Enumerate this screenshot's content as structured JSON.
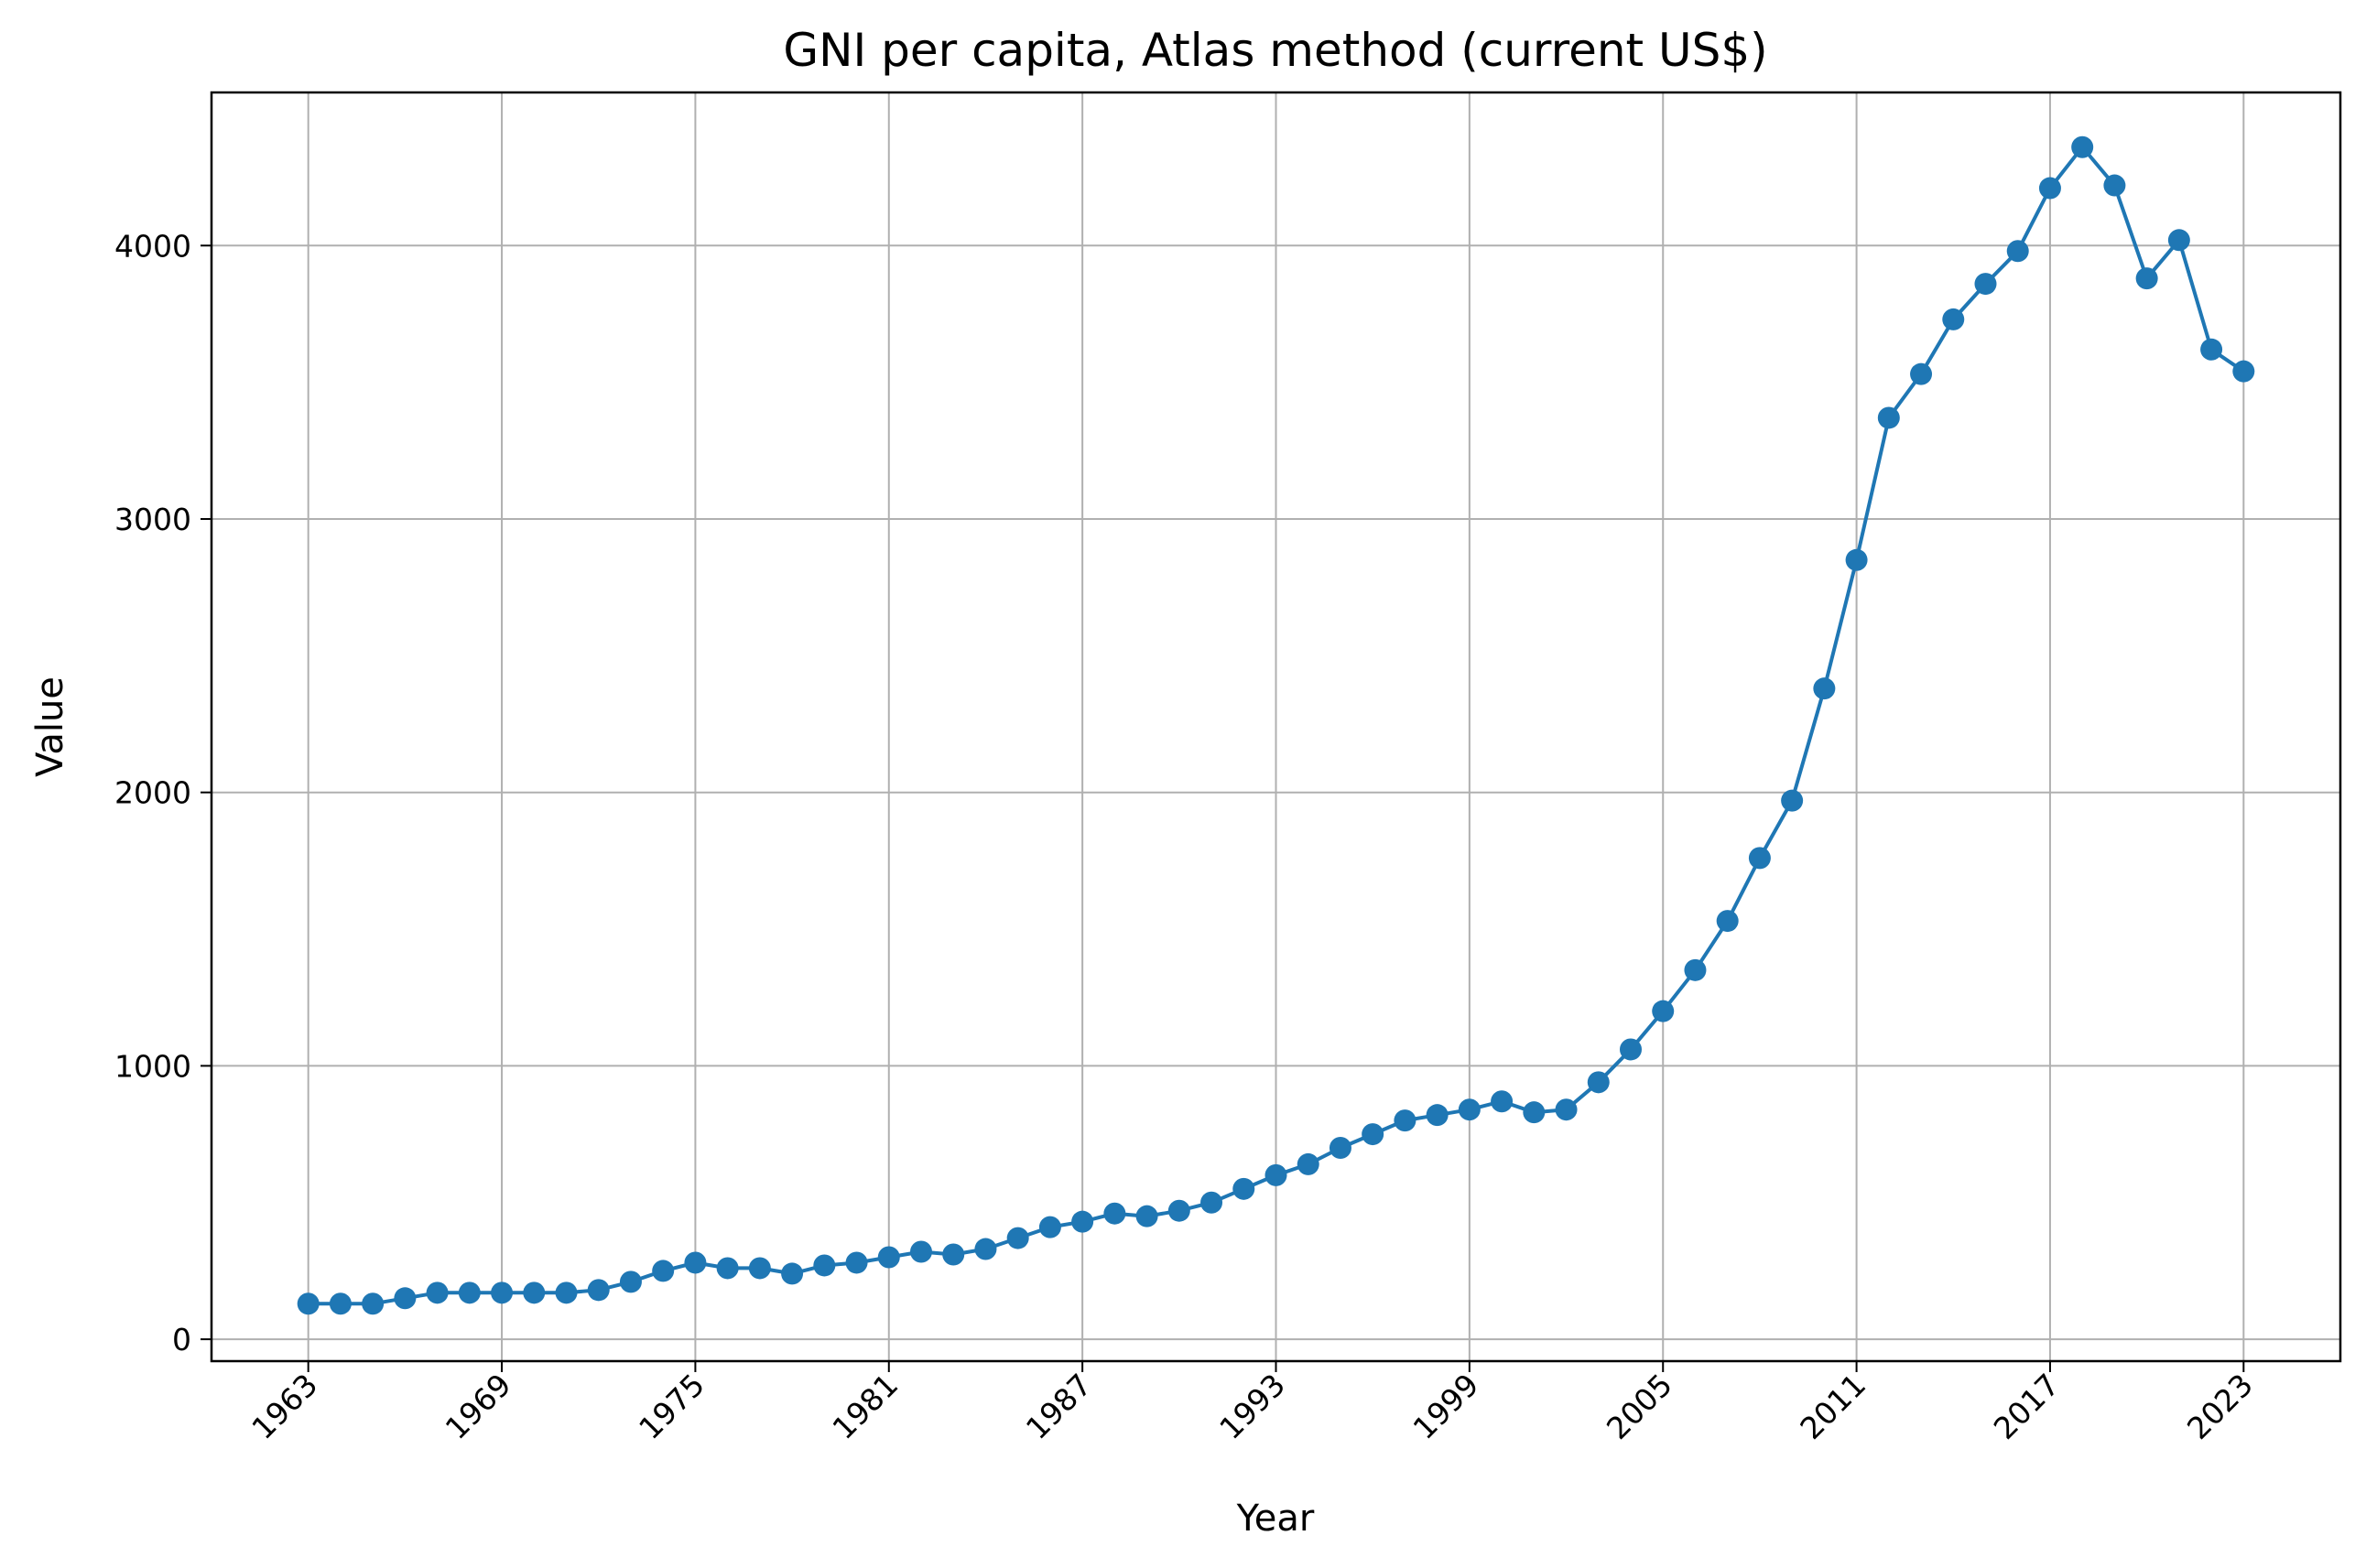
{
  "chart_data": {
    "type": "line",
    "title": "GNI per capita, Atlas method (current US$)",
    "xlabel": "Year",
    "ylabel": "Value",
    "xlim": [
      1960,
      2026
    ],
    "ylim": [
      -80,
      4560
    ],
    "x_ticks": [
      1963,
      1969,
      1975,
      1981,
      1987,
      1993,
      1999,
      2005,
      2011,
      2017,
      2023
    ],
    "y_ticks": [
      0,
      1000,
      2000,
      3000,
      4000
    ],
    "grid": true,
    "color": "#1f77b4",
    "marker": "circle",
    "series": [
      {
        "x": [
          1963,
          1964,
          1965,
          1966,
          1967,
          1968,
          1969,
          1970,
          1971,
          1972,
          1973,
          1974,
          1975,
          1976,
          1977,
          1978,
          1979,
          1980,
          1981,
          1982,
          1983,
          1984,
          1985,
          1986,
          1987,
          1988,
          1989,
          1990,
          1991,
          1992,
          1993,
          1994,
          1995,
          1996,
          1997,
          1998,
          1999,
          2000,
          2001,
          2002,
          2003,
          2004,
          2005,
          2006,
          2007,
          2008,
          2009,
          2010,
          2011,
          2012,
          2013,
          2014,
          2015,
          2016,
          2017,
          2018,
          2019,
          2020,
          2021,
          2022,
          2023
        ],
        "y": [
          130,
          130,
          130,
          150,
          170,
          170,
          170,
          170,
          170,
          180,
          210,
          250,
          280,
          260,
          260,
          240,
          270,
          280,
          300,
          320,
          310,
          330,
          370,
          410,
          430,
          460,
          450,
          470,
          500,
          550,
          600,
          640,
          700,
          750,
          800,
          820,
          840,
          870,
          830,
          840,
          940,
          1060,
          1200,
          1350,
          1530,
          1760,
          1970,
          2380,
          2850,
          3370,
          3530,
          3730,
          3860,
          3980,
          4210,
          4360,
          4220,
          3880,
          4020,
          3620,
          3540
        ]
      }
    ]
  }
}
